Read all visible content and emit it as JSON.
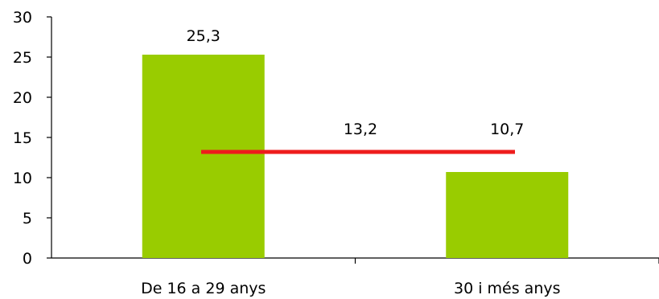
{
  "chart_data": {
    "type": "bar",
    "categories": [
      "De 16 a 29 anys",
      "30 i més anys"
    ],
    "values": [
      25.3,
      10.7
    ],
    "value_labels": [
      "25,3",
      "10,7"
    ],
    "reference_line": {
      "value": 13.2,
      "label": "13,2",
      "color": "#ee1c1c"
    },
    "title": "",
    "xlabel": "",
    "ylabel": "",
    "ylim": [
      0,
      30
    ],
    "yticks": [
      0,
      5,
      10,
      15,
      20,
      25,
      30
    ],
    "ytick_labels": [
      "0",
      "5",
      "10",
      "15",
      "20",
      "25",
      "30"
    ],
    "grid": false,
    "legend": "none",
    "bar_color": "#99cc00"
  }
}
